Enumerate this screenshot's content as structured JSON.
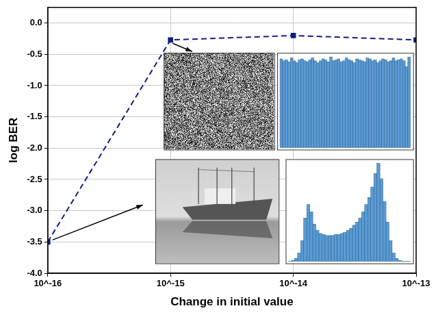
{
  "chart_data": {
    "type": "line",
    "x_label": "Change in initial value",
    "y_label": "log BER",
    "log": "x",
    "x": [
      1e-16,
      1e-15,
      1e-14,
      1e-13
    ],
    "values": [
      -3.5,
      -0.27,
      -0.2,
      -0.27
    ],
    "color": "#101c80",
    "marker": "square",
    "line_style": "dashed",
    "xlim": [
      1e-16,
      1e-13
    ],
    "xticks": [
      {
        "value": 1e-16,
        "label": "10^-16"
      },
      {
        "value": 1e-15,
        "label": "10^-15"
      },
      {
        "value": 1e-14,
        "label": "10^-14"
      },
      {
        "value": 1e-13,
        "label": "10^-13"
      }
    ],
    "ylim": [
      -4,
      0.25
    ],
    "yticks": [
      {
        "value": -4,
        "label": "-4.0"
      },
      -3.5,
      {
        "value": -3,
        "label": "-3.0"
      },
      -2.5,
      {
        "value": -2,
        "label": "-2.0"
      },
      -1.5,
      {
        "value": -1,
        "label": "-1.0"
      },
      -0.5,
      {
        "value": 0,
        "label": "0.0"
      }
    ],
    "grid": true,
    "inset_histograms": [
      {
        "color": "#5a9bd5",
        "values": [
          92,
          90,
          91,
          89,
          93,
          90,
          88,
          91,
          92,
          90,
          89,
          91,
          93,
          90,
          88,
          90,
          92,
          91,
          89,
          94,
          90,
          91,
          92,
          89,
          90,
          93,
          91,
          90,
          88,
          92,
          91,
          90,
          89,
          93,
          92,
          90,
          91,
          88,
          90,
          92,
          91,
          89,
          90,
          93,
          90,
          91,
          92,
          90,
          84,
          94
        ]
      },
      {
        "color": "#5a9bd5",
        "values": [
          0,
          1,
          3,
          8,
          20,
          42,
          55,
          48,
          36,
          30,
          27,
          26,
          25,
          25,
          25,
          26,
          26,
          27,
          28,
          30,
          32,
          35,
          38,
          42,
          48,
          55,
          62,
          72,
          85,
          95,
          80,
          58,
          38,
          20,
          8,
          3,
          1,
          0,
          0,
          0
        ]
      }
    ]
  }
}
